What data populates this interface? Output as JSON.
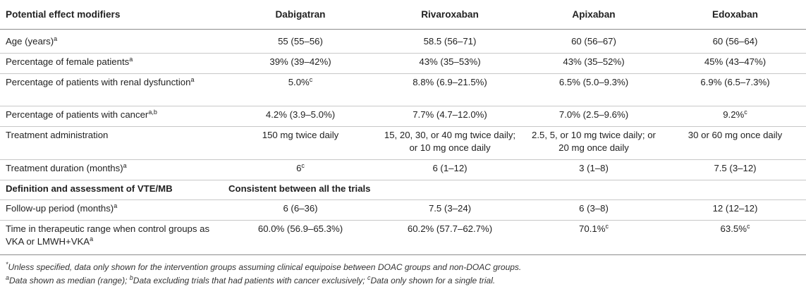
{
  "table": {
    "headers": [
      "Potential effect modifiers",
      "Dabigatran",
      "Rivaroxaban",
      "Apixaban",
      "Edoxaban"
    ],
    "rows": [
      {
        "label": "Age (years)",
        "label_sup": "a",
        "cells": [
          "55 (55–56)",
          "58.5 (56–71)",
          "60 (56–67)",
          "60 (56–64)"
        ],
        "cell_sups": [
          "",
          "",
          "",
          ""
        ]
      },
      {
        "label": "Percentage of female patients",
        "label_sup": "a",
        "cells": [
          "39% (39–42%)",
          "43% (35–53%)",
          "43% (35–52%)",
          "45% (43–47%)"
        ],
        "cell_sups": [
          "",
          "",
          "",
          ""
        ]
      },
      {
        "label": "Percentage of patients with renal dysfunction",
        "label_sup": "a",
        "cells": [
          "5.0%",
          "8.8% (6.9–21.5%)",
          "6.5% (5.0–9.3%)",
          "6.9% (6.5–7.3%)"
        ],
        "cell_sups": [
          "c",
          "",
          "",
          ""
        ]
      },
      {
        "label": "Percentage of patients with cancer",
        "label_sup": "a,b",
        "cells": [
          "4.2% (3.9–5.0%)",
          "7.7% (4.7–12.0%)",
          "7.0% (2.5–9.6%)",
          "9.2%"
        ],
        "cell_sups": [
          "",
          "",
          "",
          "c"
        ]
      },
      {
        "label": "Treatment administration",
        "label_sup": "",
        "cells": [
          "150 mg twice daily",
          "15, 20, 30, or 40 mg twice daily; or 10 mg once daily",
          "2.5, 5, or 10 mg twice daily; or 20 mg once daily",
          "30 or 60 mg once daily"
        ],
        "cell_sups": [
          "",
          "",
          "",
          ""
        ]
      },
      {
        "label": "Treatment duration (months)",
        "label_sup": "a",
        "cells": [
          "6",
          "6 (1–12)",
          "3 (1–8)",
          "7.5 (3–12)"
        ],
        "cell_sups": [
          "c",
          "",
          "",
          ""
        ]
      },
      {
        "label": "Definition and assessment of VTE/MB",
        "label_sup": "",
        "span_text": "Consistent between all the trials"
      },
      {
        "label": "Follow-up period (months)",
        "label_sup": "a",
        "cells": [
          "6 (6–36)",
          "7.5 (3–24)",
          "6 (3–8)",
          "12 (12–12)"
        ],
        "cell_sups": [
          "",
          "",
          "",
          ""
        ]
      },
      {
        "label": "Time in therapeutic range when control groups as VKA or LMWH+VKA",
        "label_sup": "a",
        "cells": [
          "60.0% (56.9–65.3%)",
          "60.2% (57.7–62.7%)",
          "70.1%",
          "63.5%"
        ],
        "cell_sups": [
          "",
          "",
          "c",
          "c"
        ]
      }
    ]
  },
  "footnotes": {
    "star_mark": "*",
    "star_text": "Unless specified, data only shown for the intervention groups assuming clinical equipoise between DOAC groups and non-DOAC groups.",
    "a_mark": "a",
    "a_text": "Data shown as median (range); ",
    "b_mark": "b",
    "b_text": "Data excluding trials that had patients with cancer exclusively; ",
    "c_mark": "c",
    "c_text": "Data only shown for a single trial."
  }
}
